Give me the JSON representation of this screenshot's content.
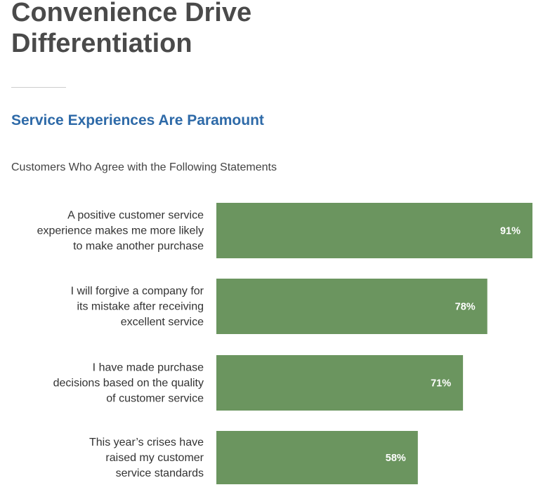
{
  "page": {
    "title": "Convenience Drive Differentiation",
    "title_lines": [
      "Convenience Drive",
      "Differentiation"
    ],
    "section_heading": "Service Experiences Are Paramount"
  },
  "colors": {
    "bar": "#6b955f",
    "title": "#4a4a4a",
    "heading": "#2e6aa8",
    "text": "#333333",
    "value_text": "#ffffff"
  },
  "chart_data": {
    "type": "bar",
    "orientation": "horizontal",
    "title": "Customers Who Agree with the Following Statements",
    "categories": [
      "A positive customer service experience makes me more likely to make another purchase",
      "I will forgive a company for its mistake after receiving excellent service",
      "I have made purchase decisions based on the quality of customer service",
      "This year’s crises have raised my customer service standards"
    ],
    "category_lines": [
      [
        "A positive customer service",
        "experience makes me more likely",
        "to make another purchase"
      ],
      [
        "I will forgive a company for",
        "its mistake after receiving",
        "excellent service"
      ],
      [
        "I have made purchase",
        "decisions based on the quality",
        "of customer service"
      ],
      [
        "This year’s crises have",
        "raised my customer",
        "service standards"
      ]
    ],
    "values": [
      91,
      78,
      71,
      58
    ],
    "value_labels": [
      "91%",
      "78%",
      "71%",
      "58%"
    ],
    "unit": "%",
    "xlim": [
      0,
      100
    ],
    "grid": false,
    "legend": "none"
  }
}
